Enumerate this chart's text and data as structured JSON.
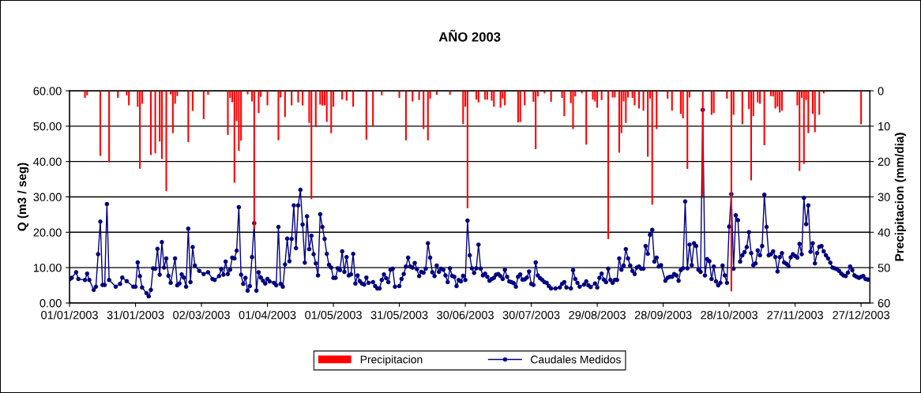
{
  "chart_data": {
    "type": "line",
    "title": "AÑO 2003",
    "ylabel": "Q (m3 / seg)",
    "y2label": "Precipitacion (mm/dia)",
    "xlim": [
      "2003-01-01",
      "2003-12-31"
    ],
    "xticks": [
      {
        "value": "2003-01-01",
        "label": "01/01/2003"
      },
      {
        "value": "2003-01-31",
        "label": "31/01/2003"
      },
      {
        "value": "2003-03-02",
        "label": "02/03/2003"
      },
      {
        "value": "2003-04-01",
        "label": "01/04/2003"
      },
      {
        "value": "2003-05-01",
        "label": "01/05/2003"
      },
      {
        "value": "2003-05-31",
        "label": "31/05/2003"
      },
      {
        "value": "2003-06-30",
        "label": "30/06/2003"
      },
      {
        "value": "2003-07-30",
        "label": "30/07/2003"
      },
      {
        "value": "2003-08-29",
        "label": "29/08/2003"
      },
      {
        "value": "2003-09-28",
        "label": "28/09/2003"
      },
      {
        "value": "2003-10-28",
        "label": "28/10/2003"
      },
      {
        "value": "2003-11-27",
        "label": "27/11/2003"
      },
      {
        "value": "2003-12-27",
        "label": "27/12/2003"
      }
    ],
    "ylim": [
      0,
      60
    ],
    "yticks": [
      {
        "value": 0,
        "label": "0.00"
      },
      {
        "value": 10,
        "label": "10.00"
      },
      {
        "value": 20,
        "label": "20.00"
      },
      {
        "value": 30,
        "label": "30.00"
      },
      {
        "value": 40,
        "label": "40.00"
      },
      {
        "value": 50,
        "label": "50.00"
      },
      {
        "value": 60,
        "label": "60.00"
      }
    ],
    "y2lim": [
      60,
      0
    ],
    "y2ticks": [
      0,
      10,
      20,
      30,
      40,
      50,
      60
    ],
    "grid": "y",
    "legend": "bottom",
    "series": [
      {
        "name": "Precipitacion",
        "type": "bar",
        "axis": "y2",
        "color": "#ff0000",
        "x": [
          "2003-01-08",
          "2003-01-09",
          "2003-01-15",
          "2003-01-19",
          "2003-01-23",
          "2003-01-27",
          "2003-01-28",
          "2003-02-01",
          "2003-02-02",
          "2003-02-03",
          "2003-02-07",
          "2003-02-09",
          "2003-02-11",
          "2003-02-12",
          "2003-02-14",
          "2003-02-16",
          "2003-02-17",
          "2003-02-18",
          "2003-02-19",
          "2003-02-24",
          "2003-02-26",
          "2003-03-03",
          "2003-03-05",
          "2003-03-14",
          "2003-03-15",
          "2003-03-16",
          "2003-03-17",
          "2003-03-18",
          "2003-03-19",
          "2003-03-20",
          "2003-03-23",
          "2003-03-25",
          "2003-03-26",
          "2003-03-28",
          "2003-03-29",
          "2003-04-01",
          "2003-04-06",
          "2003-04-07",
          "2003-04-09",
          "2003-04-12",
          "2003-04-15",
          "2003-04-17",
          "2003-04-20",
          "2003-04-21",
          "2003-04-23",
          "2003-04-25",
          "2003-04-26",
          "2003-04-27",
          "2003-04-28",
          "2003-04-30",
          "2003-05-01",
          "2003-05-05",
          "2003-05-07",
          "2003-05-10",
          "2003-05-16",
          "2003-05-19",
          "2003-05-23",
          "2003-05-31",
          "2003-06-03",
          "2003-06-06",
          "2003-06-09",
          "2003-06-11",
          "2003-06-13",
          "2003-06-14",
          "2003-06-17",
          "2003-06-23",
          "2003-06-29",
          "2003-06-30",
          "2003-07-01",
          "2003-07-05",
          "2003-07-06",
          "2003-07-09",
          "2003-07-10",
          "2003-07-12",
          "2003-07-13",
          "2003-07-16",
          "2003-07-17",
          "2003-07-18",
          "2003-07-24",
          "2003-07-25",
          "2003-07-27",
          "2003-07-31",
          "2003-08-01",
          "2003-08-02",
          "2003-08-05",
          "2003-08-08",
          "2003-08-13",
          "2003-08-14",
          "2003-08-17",
          "2003-08-18",
          "2003-08-19",
          "2003-08-22",
          "2003-08-24",
          "2003-08-27",
          "2003-08-28",
          "2003-08-29",
          "2003-08-31",
          "2003-09-03",
          "2003-09-05",
          "2003-09-06",
          "2003-09-08",
          "2003-09-09",
          "2003-09-10",
          "2003-09-11",
          "2003-09-12",
          "2003-09-14",
          "2003-09-15",
          "2003-09-17",
          "2003-09-19",
          "2003-09-21",
          "2003-09-22",
          "2003-09-23",
          "2003-09-25",
          "2003-09-30",
          "2003-10-02",
          "2003-10-06",
          "2003-10-07",
          "2003-10-09",
          "2003-10-10",
          "2003-10-16",
          "2003-10-20",
          "2003-10-21",
          "2003-10-27",
          "2003-10-29",
          "2003-10-30",
          "2003-11-03",
          "2003-11-06",
          "2003-11-07",
          "2003-11-08",
          "2003-11-10",
          "2003-11-11",
          "2003-11-13",
          "2003-11-16",
          "2003-11-17",
          "2003-11-18",
          "2003-11-19",
          "2003-11-20",
          "2003-11-21",
          "2003-11-28",
          "2003-11-29",
          "2003-11-30",
          "2003-12-01",
          "2003-12-02",
          "2003-12-03",
          "2003-12-05",
          "2003-12-06",
          "2003-12-08",
          "2003-12-10",
          "2003-12-27"
        ],
        "values": [
          2.0,
          1.3,
          18.4,
          20.2,
          2.0,
          1.3,
          4.1,
          4.5,
          22.0,
          3.7,
          18.2,
          17.7,
          14.3,
          19.3,
          28.4,
          1.0,
          12.0,
          3.7,
          1.5,
          14.5,
          5.7,
          8.0,
          1.1,
          12.5,
          2.0,
          3.2,
          26.0,
          8.6,
          17.0,
          14.1,
          1.0,
          3.0,
          39.0,
          6.3,
          1.7,
          4.1,
          14.0,
          1.9,
          7.4,
          4.1,
          3.3,
          4.1,
          9.1,
          30.6,
          10.2,
          3.9,
          4.2,
          4.1,
          8.8,
          12.0,
          4.5,
          2.5,
          2.8,
          4.5,
          13.8,
          10.0,
          1.3,
          2.0,
          14.0,
          3.0,
          2.6,
          10.8,
          14.0,
          2.2,
          1.1,
          1.1,
          9.4,
          4.5,
          33.2,
          2.5,
          3.3,
          2.5,
          2.5,
          2.8,
          4.5,
          4.8,
          2.2,
          4.1,
          8.9,
          8.8,
          4.1,
          3.1,
          16.5,
          1.6,
          0.7,
          3.1,
          2.0,
          7.2,
          3.5,
          10.8,
          1.6,
          0.7,
          15.2,
          2.5,
          3.0,
          4.8,
          2.6,
          41.9,
          1.9,
          1.9,
          17.5,
          12.0,
          3.0,
          9.1,
          1.9,
          2.0,
          4.1,
          5.0,
          5.6,
          18.6,
          2.2,
          32.2,
          10.8,
          2.2,
          5.6,
          6.5,
          7.8,
          22.1,
          1.9,
          29.9,
          6.8,
          6.3,
          2.2,
          56.7,
          6.8,
          9.5,
          5.2,
          25.3,
          7.2,
          3.3,
          3.7,
          15.4,
          1.5,
          1.6,
          5.0,
          4.5,
          6.1,
          5.6,
          4.1,
          22.7,
          2.0,
          20.7,
          2.6,
          12.0,
          6.5,
          11.7,
          6.8,
          0.7,
          9.5
        ]
      },
      {
        "name": "Caudales Medidos",
        "color": "#000080",
        "marker": "circle",
        "line_style": "solid",
        "x": [
          "2003-01-01",
          "2003-01-02",
          "2003-01-04",
          "2003-01-05",
          "2003-01-08",
          "2003-01-09",
          "2003-01-10",
          "2003-01-12",
          "2003-01-13",
          "2003-01-14",
          "2003-01-15",
          "2003-01-16",
          "2003-01-17",
          "2003-01-18",
          "2003-01-19",
          "2003-01-22",
          "2003-01-24",
          "2003-01-25",
          "2003-01-27",
          "2003-01-30",
          "2003-01-31",
          "2003-02-01",
          "2003-02-02",
          "2003-02-03",
          "2003-02-05",
          "2003-02-06",
          "2003-02-07",
          "2003-02-08",
          "2003-02-09",
          "2003-02-10",
          "2003-02-11",
          "2003-02-12",
          "2003-02-13",
          "2003-02-14",
          "2003-02-15",
          "2003-02-16",
          "2003-02-18",
          "2003-02-19",
          "2003-02-20",
          "2003-02-21",
          "2003-02-22",
          "2003-02-23",
          "2003-02-24",
          "2003-02-25",
          "2003-02-26",
          "2003-02-27",
          "2003-03-01",
          "2003-03-03",
          "2003-03-05",
          "2003-03-07",
          "2003-03-08",
          "2003-03-10",
          "2003-03-11",
          "2003-03-12",
          "2003-03-13",
          "2003-03-14",
          "2003-03-15",
          "2003-03-16",
          "2003-03-17",
          "2003-03-18",
          "2003-03-19",
          "2003-03-20",
          "2003-03-21",
          "2003-03-22",
          "2003-03-23",
          "2003-03-24",
          "2003-03-25",
          "2003-03-26",
          "2003-03-27",
          "2003-03-28",
          "2003-03-29",
          "2003-03-30",
          "2003-03-31",
          "2003-04-01",
          "2003-04-02",
          "2003-04-04",
          "2003-04-05",
          "2003-04-06",
          "2003-04-07",
          "2003-04-08",
          "2003-04-09",
          "2003-04-10",
          "2003-04-11",
          "2003-04-12",
          "2003-04-13",
          "2003-04-14",
          "2003-04-15",
          "2003-04-16",
          "2003-04-17",
          "2003-04-18",
          "2003-04-19",
          "2003-04-20",
          "2003-04-21",
          "2003-04-22",
          "2003-04-23",
          "2003-04-24",
          "2003-04-25",
          "2003-04-26",
          "2003-04-27",
          "2003-04-28",
          "2003-04-29",
          "2003-04-30",
          "2003-05-01",
          "2003-05-02",
          "2003-05-03",
          "2003-05-04",
          "2003-05-05",
          "2003-05-06",
          "2003-05-07",
          "2003-05-08",
          "2003-05-09",
          "2003-05-10",
          "2003-05-11",
          "2003-05-12",
          "2003-05-13",
          "2003-05-14",
          "2003-05-15",
          "2003-05-16",
          "2003-05-17",
          "2003-05-19",
          "2003-05-20",
          "2003-05-21",
          "2003-05-22",
          "2003-05-23",
          "2003-05-24",
          "2003-05-25",
          "2003-05-26",
          "2003-05-27",
          "2003-05-28",
          "2003-05-29",
          "2003-05-31",
          "2003-06-01",
          "2003-06-02",
          "2003-06-03",
          "2003-06-04",
          "2003-06-05",
          "2003-06-06",
          "2003-06-07",
          "2003-06-08",
          "2003-06-09",
          "2003-06-10",
          "2003-06-11",
          "2003-06-12",
          "2003-06-13",
          "2003-06-14",
          "2003-06-15",
          "2003-06-16",
          "2003-06-17",
          "2003-06-18",
          "2003-06-19",
          "2003-06-20",
          "2003-06-21",
          "2003-06-22",
          "2003-06-23",
          "2003-06-24",
          "2003-06-25",
          "2003-06-26",
          "2003-06-27",
          "2003-06-28",
          "2003-06-29",
          "2003-06-30",
          "2003-07-01",
          "2003-07-02",
          "2003-07-03",
          "2003-07-04",
          "2003-07-05",
          "2003-07-06",
          "2003-07-07",
          "2003-07-08",
          "2003-07-09",
          "2003-07-10",
          "2003-07-11",
          "2003-07-12",
          "2003-07-13",
          "2003-07-14",
          "2003-07-15",
          "2003-07-16",
          "2003-07-17",
          "2003-07-18",
          "2003-07-19",
          "2003-07-20",
          "2003-07-21",
          "2003-07-22",
          "2003-07-23",
          "2003-07-24",
          "2003-07-25",
          "2003-07-26",
          "2003-07-27",
          "2003-07-28",
          "2003-07-29",
          "2003-07-30",
          "2003-07-31",
          "2003-08-01",
          "2003-08-02",
          "2003-08-03",
          "2003-08-04",
          "2003-08-05",
          "2003-08-06",
          "2003-08-07",
          "2003-08-08",
          "2003-08-10",
          "2003-08-12",
          "2003-08-13",
          "2003-08-14",
          "2003-08-15",
          "2003-08-17",
          "2003-08-18",
          "2003-08-19",
          "2003-08-20",
          "2003-08-21",
          "2003-08-23",
          "2003-08-24",
          "2003-08-25",
          "2003-08-26",
          "2003-08-28",
          "2003-08-29",
          "2003-08-30",
          "2003-08-31",
          "2003-09-01",
          "2003-09-02",
          "2003-09-03",
          "2003-09-04",
          "2003-09-05",
          "2003-09-06",
          "2003-09-07",
          "2003-09-08",
          "2003-09-09",
          "2003-09-10",
          "2003-09-11",
          "2003-09-12",
          "2003-09-13",
          "2003-09-14",
          "2003-09-15",
          "2003-09-16",
          "2003-09-17",
          "2003-09-18",
          "2003-09-19",
          "2003-09-20",
          "2003-09-21",
          "2003-09-22",
          "2003-09-23",
          "2003-09-24",
          "2003-09-25",
          "2003-09-26",
          "2003-09-27",
          "2003-09-29",
          "2003-09-30",
          "2003-10-01",
          "2003-10-02",
          "2003-10-03",
          "2003-10-04",
          "2003-10-05",
          "2003-10-06",
          "2003-10-07",
          "2003-10-08",
          "2003-10-09",
          "2003-10-10",
          "2003-10-11",
          "2003-10-12",
          "2003-10-13",
          "2003-10-14",
          "2003-10-15",
          "2003-10-16",
          "2003-10-17",
          "2003-10-18",
          "2003-10-19",
          "2003-10-20",
          "2003-10-21",
          "2003-10-22",
          "2003-10-23",
          "2003-10-24",
          "2003-10-25",
          "2003-10-26",
          "2003-10-27",
          "2003-10-28",
          "2003-10-29",
          "2003-10-30",
          "2003-10-31",
          "2003-11-01",
          "2003-11-02",
          "2003-11-03",
          "2003-11-04",
          "2003-11-05",
          "2003-11-06",
          "2003-11-07",
          "2003-11-08",
          "2003-11-09",
          "2003-11-10",
          "2003-11-11",
          "2003-11-12",
          "2003-11-13",
          "2003-11-14",
          "2003-11-15",
          "2003-11-16",
          "2003-11-17",
          "2003-11-18",
          "2003-11-19",
          "2003-11-20",
          "2003-11-21",
          "2003-11-22",
          "2003-11-23",
          "2003-11-24",
          "2003-11-25",
          "2003-11-26",
          "2003-11-27",
          "2003-11-28",
          "2003-11-29",
          "2003-11-30",
          "2003-12-01",
          "2003-12-02",
          "2003-12-03",
          "2003-12-04",
          "2003-12-05",
          "2003-12-06",
          "2003-12-07",
          "2003-12-08",
          "2003-12-09",
          "2003-12-10",
          "2003-12-11",
          "2003-12-12",
          "2003-12-13",
          "2003-12-14",
          "2003-12-15",
          "2003-12-16",
          "2003-12-17",
          "2003-12-18",
          "2003-12-19",
          "2003-12-20",
          "2003-12-21",
          "2003-12-22",
          "2003-12-23",
          "2003-12-24",
          "2003-12-25",
          "2003-12-26",
          "2003-12-27",
          "2003-12-28",
          "2003-12-29",
          "2003-12-30",
          "2003-12-31"
        ],
        "values": [
          6.7,
          7.1,
          8.7,
          6.8,
          6.5,
          8.3,
          6.5,
          3.7,
          4.6,
          13.8,
          23.0,
          5.1,
          5.1,
          28.0,
          6.5,
          4.6,
          5.4,
          7.2,
          6.2,
          4.6,
          4.6,
          11.5,
          7.6,
          4.4,
          2.8,
          1.9,
          3.7,
          9.8,
          9.7,
          15.3,
          8.0,
          17.2,
          10.0,
          12.6,
          7.7,
          5.7,
          12.6,
          5.0,
          5.5,
          8.1,
          7.2,
          4.6,
          21.0,
          5.9,
          15.8,
          10.6,
          9.1,
          8.2,
          8.7,
          6.8,
          6.5,
          7.6,
          9.6,
          8.0,
          11.7,
          8.2,
          9.4,
          12.8,
          12.6,
          14.8,
          27.1,
          8.0,
          5.4,
          7.1,
          3.5,
          4.8,
          13.0,
          22.6,
          3.5,
          8.7,
          7.2,
          6.3,
          5.5,
          6.8,
          6.1,
          5.7,
          5.0,
          21.5,
          5.4,
          4.6,
          10.9,
          18.2,
          11.8,
          18.1,
          27.6,
          15.5,
          27.6,
          32.0,
          22.2,
          11.4,
          24.5,
          15.2,
          19.0,
          13.8,
          11.2,
          7.8,
          25.1,
          21.5,
          18.1,
          13.9,
          10.8,
          10.0,
          7.1,
          7.1,
          9.8,
          9.3,
          14.6,
          8.8,
          13.0,
          7.8,
          8.1,
          13.9,
          5.5,
          7.8,
          6.2,
          5.5,
          5.2,
          7.2,
          5.7,
          5.9,
          4.8,
          4.1,
          4.1,
          6.5,
          8.1,
          7.0,
          5.9,
          9.4,
          9.7,
          4.6,
          4.8,
          6.8,
          8.2,
          10.3,
          12.8,
          10.3,
          10.0,
          11.3,
          9.6,
          7.6,
          8.8,
          8.6,
          9.7,
          16.9,
          12.8,
          8.7,
          7.6,
          10.6,
          8.8,
          9.7,
          9.4,
          7.8,
          5.9,
          9.8,
          7.7,
          7.4,
          4.8,
          6.5,
          6.1,
          7.7,
          6.5,
          23.3,
          13.5,
          9.8,
          8.5,
          9.8,
          16.5,
          9.7,
          7.8,
          8.3,
          7.4,
          6.3,
          6.8,
          7.1,
          8.0,
          8.2,
          7.6,
          6.8,
          9.4,
          7.4,
          6.1,
          5.9,
          5.6,
          4.6,
          7.4,
          8.1,
          6.6,
          6.7,
          7.2,
          8.9,
          5.4,
          5.1,
          11.5,
          7.8,
          7.0,
          6.5,
          5.9,
          5.7,
          4.8,
          4.1,
          4.1,
          4.4,
          5.4,
          5.9,
          4.4,
          4.1,
          9.3,
          6.8,
          5.7,
          4.6,
          5.2,
          6.1,
          5.0,
          4.5,
          5.5,
          4.4,
          7.1,
          8.3,
          6.6,
          5.9,
          9.7,
          6.5,
          5.7,
          6.5,
          6.5,
          12.6,
          9.4,
          10.6,
          15.2,
          12.6,
          10.6,
          9.1,
          8.2,
          10.0,
          10.3,
          9.7,
          9.7,
          16.1,
          13.9,
          19.3,
          20.7,
          11.7,
          12.8,
          10.3,
          10.7,
          6.3,
          7.1,
          7.4,
          7.4,
          8.2,
          7.8,
          6.3,
          9.3,
          9.8,
          28.7,
          9.8,
          16.5,
          10.7,
          16.9,
          16.1,
          9.4,
          8.8,
          54.6,
          7.8,
          12.4,
          11.8,
          6.8,
          10.3,
          6.1,
          5.0,
          5.7,
          10.6,
          7.8,
          5.7,
          21.6,
          30.8,
          9.7,
          24.8,
          23.4,
          11.7,
          13.5,
          14.4,
          15.8,
          20.0,
          14.1,
          10.7,
          11.2,
          14.9,
          13.5,
          16.1,
          30.6,
          21.5,
          13.5,
          13.8,
          14.6,
          13.0,
          8.9,
          13.0,
          14.1,
          11.5,
          11.1,
          10.4,
          12.9,
          13.8,
          13.3,
          12.8,
          16.7,
          13.8,
          29.7,
          22.3,
          27.6,
          14.5,
          16.9,
          11.2,
          14.1,
          15.9,
          16.1,
          14.6,
          13.5,
          12.6,
          11.4,
          10.0,
          9.8,
          9.6,
          9.1,
          8.3,
          7.8,
          7.6,
          8.6,
          10.3,
          9.3,
          7.8,
          7.4,
          7.1,
          7.4,
          7.6,
          6.8,
          6.6,
          6.6
        ]
      }
    ]
  }
}
